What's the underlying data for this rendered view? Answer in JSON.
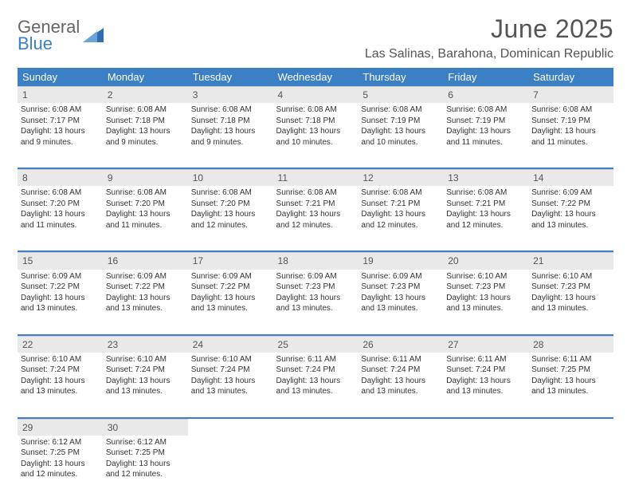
{
  "logo": {
    "top": "General",
    "bottom": "Blue"
  },
  "title": "June 2025",
  "location": "Las Salinas, Barahona, Dominican Republic",
  "colors": {
    "header_blue": "#3b7fc4",
    "daynum_bg": "#e9e9e9",
    "text": "#333333",
    "title_gray": "#555555",
    "logo_gray": "#666666"
  },
  "day_headers": [
    "Sunday",
    "Monday",
    "Tuesday",
    "Wednesday",
    "Thursday",
    "Friday",
    "Saturday"
  ],
  "weeks": [
    [
      {
        "num": "1",
        "sunrise": "Sunrise: 6:08 AM",
        "sunset": "Sunset: 7:17 PM",
        "daylight": "Daylight: 13 hours and 9 minutes."
      },
      {
        "num": "2",
        "sunrise": "Sunrise: 6:08 AM",
        "sunset": "Sunset: 7:18 PM",
        "daylight": "Daylight: 13 hours and 9 minutes."
      },
      {
        "num": "3",
        "sunrise": "Sunrise: 6:08 AM",
        "sunset": "Sunset: 7:18 PM",
        "daylight": "Daylight: 13 hours and 9 minutes."
      },
      {
        "num": "4",
        "sunrise": "Sunrise: 6:08 AM",
        "sunset": "Sunset: 7:18 PM",
        "daylight": "Daylight: 13 hours and 10 minutes."
      },
      {
        "num": "5",
        "sunrise": "Sunrise: 6:08 AM",
        "sunset": "Sunset: 7:19 PM",
        "daylight": "Daylight: 13 hours and 10 minutes."
      },
      {
        "num": "6",
        "sunrise": "Sunrise: 6:08 AM",
        "sunset": "Sunset: 7:19 PM",
        "daylight": "Daylight: 13 hours and 11 minutes."
      },
      {
        "num": "7",
        "sunrise": "Sunrise: 6:08 AM",
        "sunset": "Sunset: 7:19 PM",
        "daylight": "Daylight: 13 hours and 11 minutes."
      }
    ],
    [
      {
        "num": "8",
        "sunrise": "Sunrise: 6:08 AM",
        "sunset": "Sunset: 7:20 PM",
        "daylight": "Daylight: 13 hours and 11 minutes."
      },
      {
        "num": "9",
        "sunrise": "Sunrise: 6:08 AM",
        "sunset": "Sunset: 7:20 PM",
        "daylight": "Daylight: 13 hours and 11 minutes."
      },
      {
        "num": "10",
        "sunrise": "Sunrise: 6:08 AM",
        "sunset": "Sunset: 7:20 PM",
        "daylight": "Daylight: 13 hours and 12 minutes."
      },
      {
        "num": "11",
        "sunrise": "Sunrise: 6:08 AM",
        "sunset": "Sunset: 7:21 PM",
        "daylight": "Daylight: 13 hours and 12 minutes."
      },
      {
        "num": "12",
        "sunrise": "Sunrise: 6:08 AM",
        "sunset": "Sunset: 7:21 PM",
        "daylight": "Daylight: 13 hours and 12 minutes."
      },
      {
        "num": "13",
        "sunrise": "Sunrise: 6:08 AM",
        "sunset": "Sunset: 7:21 PM",
        "daylight": "Daylight: 13 hours and 12 minutes."
      },
      {
        "num": "14",
        "sunrise": "Sunrise: 6:09 AM",
        "sunset": "Sunset: 7:22 PM",
        "daylight": "Daylight: 13 hours and 13 minutes."
      }
    ],
    [
      {
        "num": "15",
        "sunrise": "Sunrise: 6:09 AM",
        "sunset": "Sunset: 7:22 PM",
        "daylight": "Daylight: 13 hours and 13 minutes."
      },
      {
        "num": "16",
        "sunrise": "Sunrise: 6:09 AM",
        "sunset": "Sunset: 7:22 PM",
        "daylight": "Daylight: 13 hours and 13 minutes."
      },
      {
        "num": "17",
        "sunrise": "Sunrise: 6:09 AM",
        "sunset": "Sunset: 7:22 PM",
        "daylight": "Daylight: 13 hours and 13 minutes."
      },
      {
        "num": "18",
        "sunrise": "Sunrise: 6:09 AM",
        "sunset": "Sunset: 7:23 PM",
        "daylight": "Daylight: 13 hours and 13 minutes."
      },
      {
        "num": "19",
        "sunrise": "Sunrise: 6:09 AM",
        "sunset": "Sunset: 7:23 PM",
        "daylight": "Daylight: 13 hours and 13 minutes."
      },
      {
        "num": "20",
        "sunrise": "Sunrise: 6:10 AM",
        "sunset": "Sunset: 7:23 PM",
        "daylight": "Daylight: 13 hours and 13 minutes."
      },
      {
        "num": "21",
        "sunrise": "Sunrise: 6:10 AM",
        "sunset": "Sunset: 7:23 PM",
        "daylight": "Daylight: 13 hours and 13 minutes."
      }
    ],
    [
      {
        "num": "22",
        "sunrise": "Sunrise: 6:10 AM",
        "sunset": "Sunset: 7:24 PM",
        "daylight": "Daylight: 13 hours and 13 minutes."
      },
      {
        "num": "23",
        "sunrise": "Sunrise: 6:10 AM",
        "sunset": "Sunset: 7:24 PM",
        "daylight": "Daylight: 13 hours and 13 minutes."
      },
      {
        "num": "24",
        "sunrise": "Sunrise: 6:10 AM",
        "sunset": "Sunset: 7:24 PM",
        "daylight": "Daylight: 13 hours and 13 minutes."
      },
      {
        "num": "25",
        "sunrise": "Sunrise: 6:11 AM",
        "sunset": "Sunset: 7:24 PM",
        "daylight": "Daylight: 13 hours and 13 minutes."
      },
      {
        "num": "26",
        "sunrise": "Sunrise: 6:11 AM",
        "sunset": "Sunset: 7:24 PM",
        "daylight": "Daylight: 13 hours and 13 minutes."
      },
      {
        "num": "27",
        "sunrise": "Sunrise: 6:11 AM",
        "sunset": "Sunset: 7:24 PM",
        "daylight": "Daylight: 13 hours and 13 minutes."
      },
      {
        "num": "28",
        "sunrise": "Sunrise: 6:11 AM",
        "sunset": "Sunset: 7:25 PM",
        "daylight": "Daylight: 13 hours and 13 minutes."
      }
    ],
    [
      {
        "num": "29",
        "sunrise": "Sunrise: 6:12 AM",
        "sunset": "Sunset: 7:25 PM",
        "daylight": "Daylight: 13 hours and 12 minutes."
      },
      {
        "num": "30",
        "sunrise": "Sunrise: 6:12 AM",
        "sunset": "Sunset: 7:25 PM",
        "daylight": "Daylight: 13 hours and 12 minutes."
      },
      null,
      null,
      null,
      null,
      null
    ]
  ]
}
